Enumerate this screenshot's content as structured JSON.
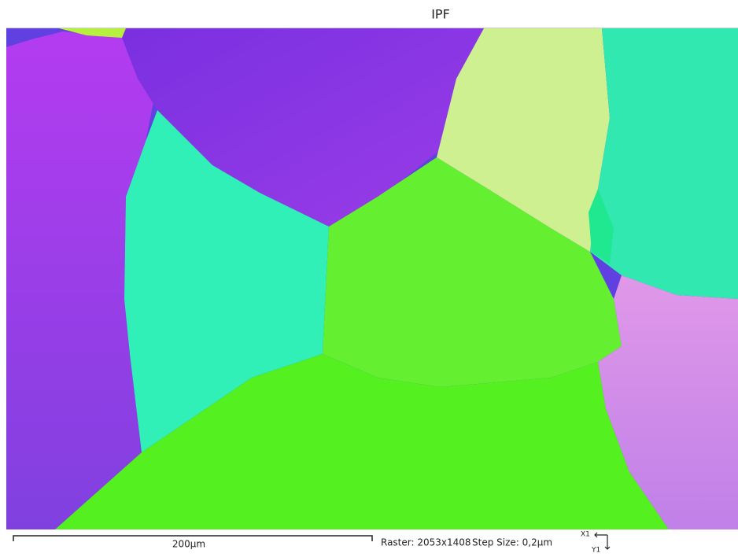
{
  "header": {
    "title": "IPF"
  },
  "footer": {
    "scale_bar": "200µm",
    "raster": "Raster: 2053x1408",
    "step_size": "Step Size: 0,2µm",
    "axis_x": "X1",
    "axis_y": "Y1"
  }
}
